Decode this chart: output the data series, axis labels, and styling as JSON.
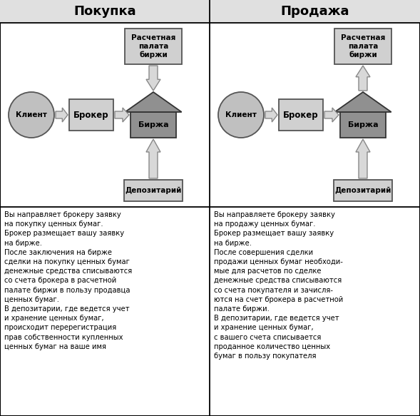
{
  "title_left": "Покупка",
  "title_right": "Продажа",
  "bg_color": "#ffffff",
  "header_bg": "#e0e0e0",
  "box_fill": "#d0d0d0",
  "box_edge": "#555555",
  "circle_fill": "#c0c0c0",
  "house_fill": "#909090",
  "house_dark": "#686868",
  "arrow_fill": "#d8d8d8",
  "arrow_edge": "#888888",
  "text_color": "#000000",
  "text_left": "Вы направляет брокеру заявку\nна покупку ценных бумаг.\nБрокер размещает вашу заявку\nна бирже.\nПосле заключения на бирже\nсделки на покупку ценных бумаг\nденежные средства списываются\nсо счета брокера в расчетной\nпалате биржи в пользу продавца\nценных бумаг.\nВ депозитарии, где ведется учет\nи хранение ценных бумаг,\nпроисходит перерегистрация\nправ собственности купленных\nценных бумаг на ваше имя",
  "text_right": "Вы направляете брокеру заявку\nна продажу ценных бумаг.\nБрокер размещает вашу заявку\nна бирже.\nПосле совершения сделки\nпродажи ценных бумаг необходи-\nмые для расчетов по сделке\nденежные средства списываются\nсо счета покупателя и зачисля-\nются на счет брокера в расчетной\nпалате биржи.\nВ депозитарии, где ведется учет\nи хранение ценных бумаг,\nс вашего счета списывается\nпроданное количество ценных\nбумаг в пользу покупателя"
}
